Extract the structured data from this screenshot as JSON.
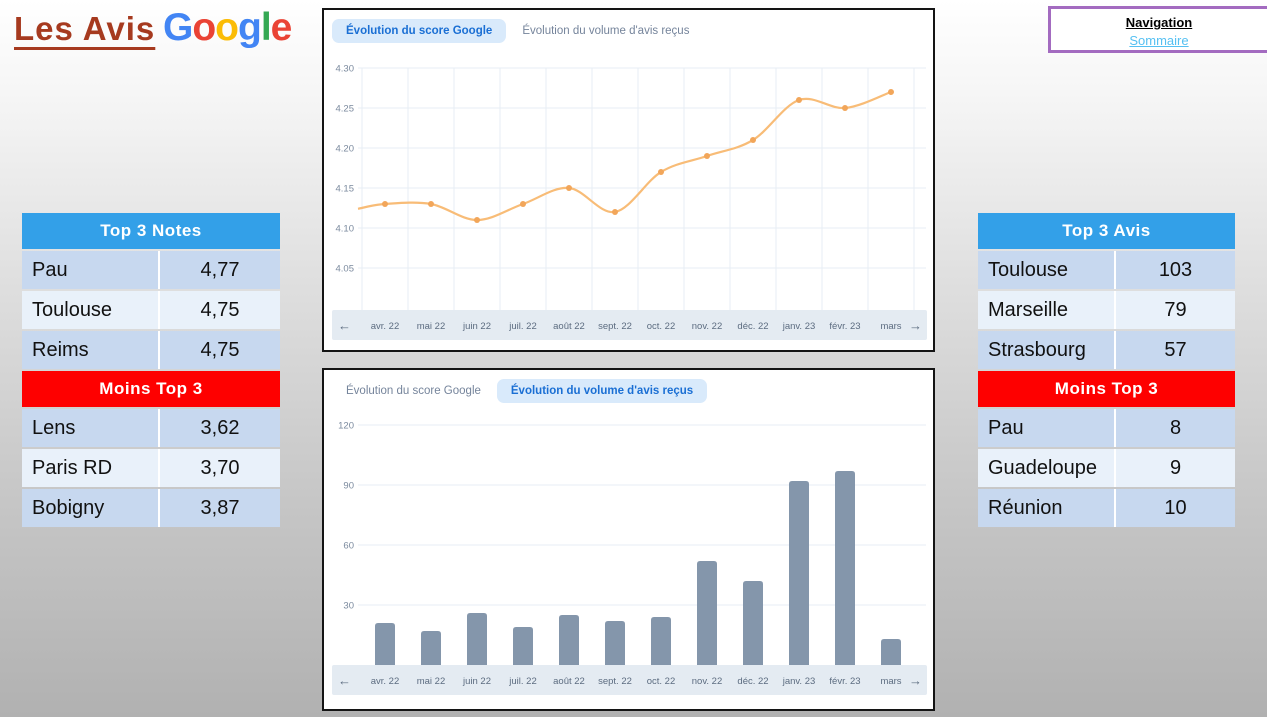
{
  "page": {
    "title": "Les Avis"
  },
  "logo": {
    "name": "Google",
    "letters": [
      {
        "ch": "G",
        "color": "#4285F4"
      },
      {
        "ch": "o",
        "color": "#EA4335"
      },
      {
        "ch": "o",
        "color": "#FBBC05"
      },
      {
        "ch": "g",
        "color": "#4285F4"
      },
      {
        "ch": "l",
        "color": "#34A853"
      },
      {
        "ch": "e",
        "color": "#EA4335"
      }
    ]
  },
  "navigation": {
    "title": "Navigation",
    "link": "Sommaire"
  },
  "tables": {
    "left": {
      "top_header": "Top 3 Notes",
      "top_rows": [
        {
          "name": "Pau",
          "value": "4,77"
        },
        {
          "name": "Toulouse",
          "value": "4,75"
        },
        {
          "name": "Reims",
          "value": "4,75"
        }
      ],
      "bottom_header": "Moins Top 3",
      "bottom_rows": [
        {
          "name": "Lens",
          "value": "3,62"
        },
        {
          "name": "Paris RD",
          "value": "3,70"
        },
        {
          "name": "Bobigny",
          "value": "3,87"
        }
      ]
    },
    "right": {
      "top_header": "Top 3 Avis",
      "top_rows": [
        {
          "name": "Toulouse",
          "value": "103"
        },
        {
          "name": "Marseille",
          "value": "79"
        },
        {
          "name": "Strasbourg",
          "value": "57"
        }
      ],
      "bottom_header": "Moins Top 3",
      "bottom_rows": [
        {
          "name": "Pau",
          "value": "8"
        },
        {
          "name": "Guadeloupe",
          "value": "9"
        },
        {
          "name": "Réunion",
          "value": "10"
        }
      ]
    }
  },
  "charts": {
    "tabs": {
      "score": "Évolution du score Google",
      "volume": "Évolution du volume d'avis reçus"
    },
    "month_labels": [
      "avr. 22",
      "mai 22",
      "juin 22",
      "juil. 22",
      "août 22",
      "sept. 22",
      "oct. 22",
      "nov. 22",
      "déc. 22",
      "janv. 23",
      "févr. 23",
      "mars"
    ],
    "nav_arrows": {
      "left": "←",
      "right": "→"
    },
    "colors": {
      "grid": "#E7EDF4",
      "axis_text": "#7B8A9E",
      "strip_bg": "#E4EBF2",
      "strip_text": "#5C6C80",
      "tab_active_bg": "#D9EAFB",
      "tab_active_text": "#1A6FD4",
      "tab_inactive_text": "#75849B"
    }
  },
  "chart_data": [
    {
      "type": "line",
      "title": "Évolution du score Google",
      "x": [
        "avr. 22",
        "mai 22",
        "juin 22",
        "juil. 22",
        "août 22",
        "sept. 22",
        "oct. 22",
        "nov. 22",
        "déc. 22",
        "janv. 23",
        "févr. 23",
        "mars 23"
      ],
      "values": [
        4.13,
        4.13,
        4.11,
        4.13,
        4.15,
        4.12,
        4.17,
        4.19,
        4.21,
        4.26,
        4.25,
        4.27
      ],
      "lead_in_value": 4.124,
      "yticks": [
        "4.30",
        "4.25",
        "4.20",
        "4.15",
        "4.10",
        "4.05"
      ],
      "ylim": [
        4.0,
        4.3
      ],
      "grid": "both",
      "legend_position": "none",
      "line_color": "#F8BC77",
      "point_color": "#F2A65A"
    },
    {
      "type": "bar",
      "title": "Évolution du volume d'avis reçus",
      "x": [
        "avr. 22",
        "mai 22",
        "juin 22",
        "juil. 22",
        "août 22",
        "sept. 22",
        "oct. 22",
        "nov. 22",
        "déc. 22",
        "janv. 23",
        "févr. 23",
        "mars 23"
      ],
      "values": [
        21,
        17,
        26,
        19,
        25,
        22,
        24,
        52,
        42,
        92,
        97,
        13
      ],
      "yticks": [
        120,
        90,
        60,
        30
      ],
      "ylim": [
        0,
        130
      ],
      "grid": "horizontal",
      "legend_position": "none",
      "bar_color": "#8496AB"
    }
  ]
}
